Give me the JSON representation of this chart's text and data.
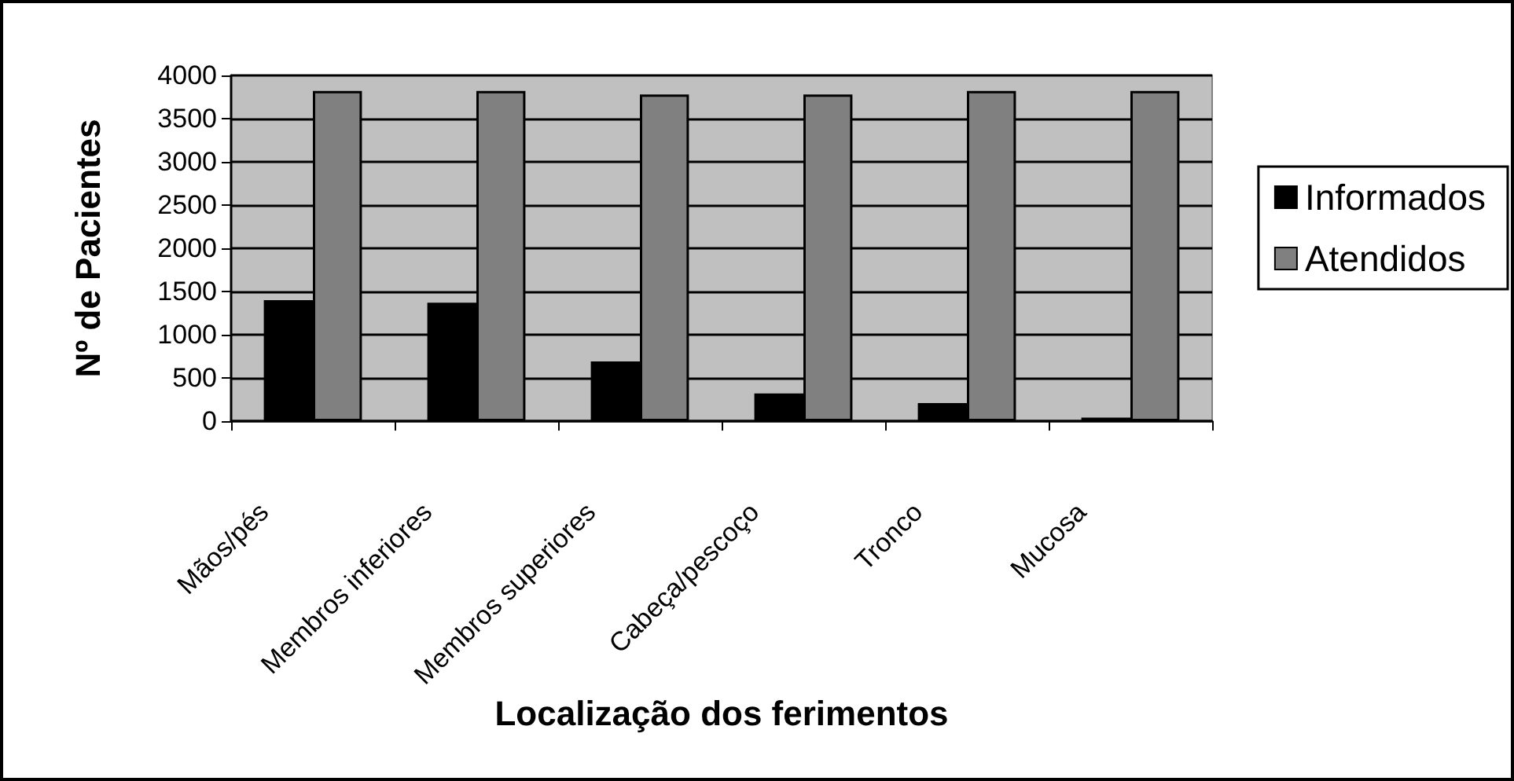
{
  "chart_data": {
    "type": "bar",
    "xlabel": "Localização dos ferimentos",
    "ylabel": "Nº de Pacientes",
    "categories": [
      "Mãos/pés",
      "Membros inferiores",
      "Membros superiores",
      "Cabeça/pescoço",
      "Tronco",
      "Mucosa"
    ],
    "series": [
      {
        "name": "Informados",
        "color": "#000000",
        "values": [
          1400,
          1370,
          690,
          320,
          210,
          40
        ]
      },
      {
        "name": "Atendidos",
        "color": "#808080",
        "values": [
          3820,
          3820,
          3780,
          3780,
          3820,
          3820
        ]
      }
    ],
    "ylim": [
      0,
      4000
    ],
    "yticks": [
      0,
      500,
      1000,
      1500,
      2000,
      2500,
      3000,
      3500,
      4000
    ],
    "grid": "y",
    "legend": "right"
  }
}
